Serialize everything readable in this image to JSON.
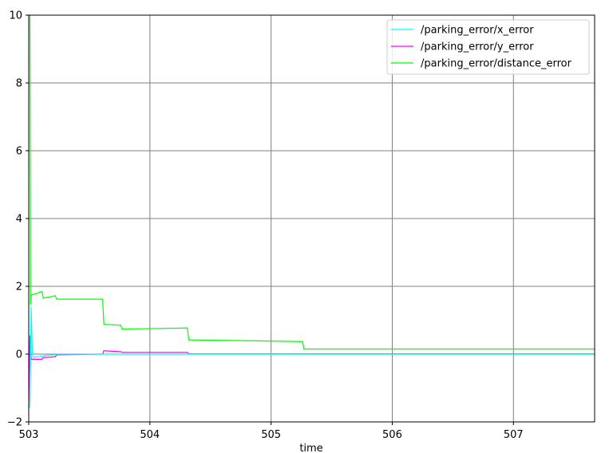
{
  "chart_data": {
    "type": "line",
    "xlabel": "time",
    "ylabel": "",
    "xlim": [
      503.0,
      507.67
    ],
    "ylim": [
      -2,
      10
    ],
    "xticks": [
      503,
      504,
      505,
      506,
      507
    ],
    "yticks": [
      -2,
      0,
      2,
      4,
      6,
      8,
      10
    ],
    "grid": true,
    "legend": "top-right",
    "series": [
      {
        "name": "/parking_error/x_error",
        "color": "#00ffff",
        "x": [
          503.0,
          503.01,
          503.02,
          503.03,
          503.04,
          503.06,
          503.12,
          503.13,
          503.22,
          503.23,
          503.61,
          503.62,
          503.76,
          503.77,
          504.31,
          504.32,
          505.26,
          505.27,
          507.67
        ],
        "y": [
          -1.6,
          -1.5,
          1.4,
          0.0,
          -0.1,
          -0.08,
          -0.06,
          -0.04,
          -0.02,
          0.0,
          0.0,
          0.0,
          0.0,
          0.0,
          0.0,
          0.0,
          0.0,
          0.0,
          0.0
        ]
      },
      {
        "name": "/parking_error/y_error",
        "color": "#ff00ff",
        "x": [
          503.0,
          503.01,
          503.02,
          503.03,
          503.04,
          503.06,
          503.11,
          503.12,
          503.22,
          503.23,
          503.6,
          503.61,
          503.62,
          503.76,
          503.77,
          504.31,
          504.32,
          507.67
        ],
        "y": [
          -1.4,
          0.55,
          -0.15,
          -0.15,
          -0.15,
          -0.15,
          -0.15,
          -0.1,
          -0.08,
          -0.02,
          0.0,
          0.0,
          0.1,
          0.07,
          0.05,
          0.05,
          0.01,
          0.01
        ]
      },
      {
        "name": "/parking_error/distance_error",
        "color": "#00ff00",
        "x": [
          503.0,
          503.01,
          503.015,
          503.02,
          503.03,
          503.06,
          503.11,
          503.12,
          503.22,
          503.23,
          503.61,
          503.62,
          503.76,
          503.77,
          504.31,
          504.32,
          505.26,
          505.27,
          507.67
        ],
        "y": [
          10.0,
          10.0,
          1.45,
          1.75,
          1.75,
          1.78,
          1.85,
          1.65,
          1.72,
          1.62,
          1.62,
          0.88,
          0.85,
          0.74,
          0.77,
          0.42,
          0.37,
          0.15,
          0.15
        ]
      }
    ]
  }
}
